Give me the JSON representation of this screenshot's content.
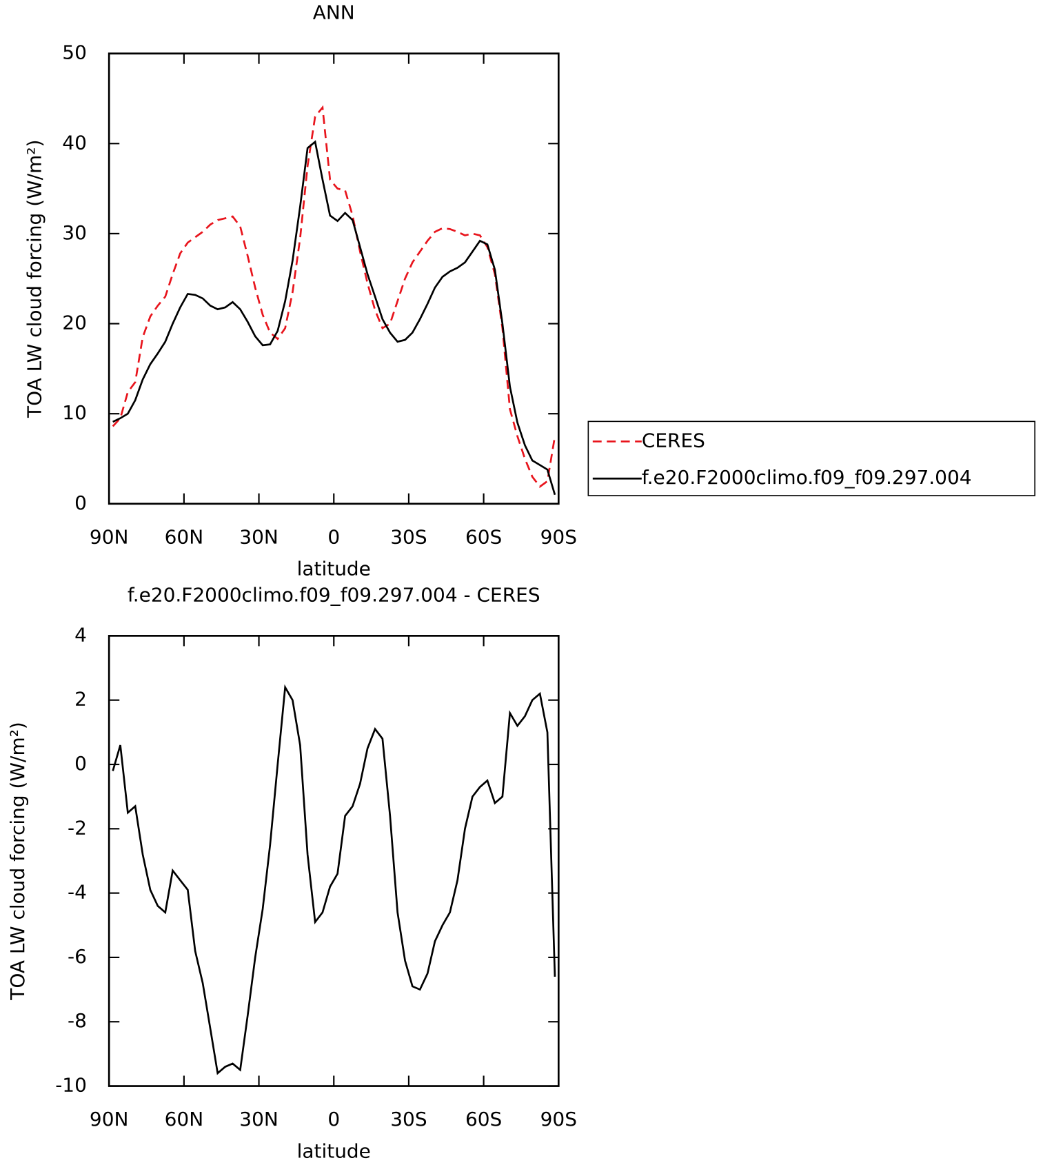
{
  "chart_data": [
    {
      "type": "line",
      "title": "ANN",
      "xlabel": "latitude",
      "ylabel": "TOA LW cloud forcing (W/m²)",
      "x": [
        88.5,
        85.5,
        82.5,
        79.5,
        76.5,
        73.5,
        70.5,
        67.5,
        64.5,
        61.5,
        58.5,
        55.5,
        52.5,
        49.5,
        46.5,
        43.5,
        40.5,
        37.5,
        34.5,
        31.5,
        28.5,
        25.5,
        22.5,
        19.5,
        16.5,
        13.5,
        10.5,
        7.5,
        4.5,
        1.5,
        -1.5,
        -4.5,
        -7.5,
        -10.5,
        -13.5,
        -16.5,
        -19.5,
        -22.5,
        -25.5,
        -28.5,
        -31.5,
        -34.5,
        -37.5,
        -40.5,
        -43.5,
        -46.5,
        -49.5,
        -52.5,
        -55.5,
        -58.5,
        -61.5,
        -64.5,
        -67.5,
        -70.5,
        -73.5,
        -76.5,
        -79.5,
        -82.5,
        -85.5,
        -88.5
      ],
      "series": [
        {
          "name": "CERES",
          "color": "#e8141c",
          "line_style": "dashed",
          "values": [
            8.6,
            9.5,
            12.4,
            13.5,
            18.5,
            20.8,
            22.0,
            23.0,
            25.5,
            27.8,
            29.0,
            29.6,
            30.2,
            31.0,
            31.5,
            31.7,
            31.9,
            30.8,
            27.5,
            24.0,
            21.0,
            19.0,
            18.3,
            19.5,
            23.5,
            29.5,
            37.5,
            43.0,
            44.0,
            36.0,
            35.0,
            34.8,
            32.0,
            28.0,
            24.5,
            21.5,
            19.5,
            20.0,
            22.5,
            25.0,
            26.8,
            28.0,
            29.2,
            30.2,
            30.6,
            30.5,
            30.2,
            29.8,
            30.0,
            29.8,
            28.5,
            25.5,
            19.5,
            10.5,
            7.5,
            5.0,
            3.0,
            1.9,
            2.5,
            7.5
          ]
        },
        {
          "name": "f.e20.F2000climo.f09_f09.297.004",
          "color": "#000000",
          "line_style": "solid",
          "values": [
            9.1,
            9.5,
            10.0,
            11.5,
            13.8,
            15.5,
            16.7,
            18.0,
            20.0,
            21.8,
            23.3,
            23.2,
            22.8,
            22.0,
            21.6,
            21.8,
            22.4,
            21.6,
            20.2,
            18.6,
            17.6,
            17.7,
            19.2,
            22.5,
            27.0,
            33.0,
            39.5,
            40.2,
            36.0,
            32.0,
            31.4,
            32.3,
            31.5,
            28.5,
            25.5,
            23.0,
            20.5,
            19.0,
            18.0,
            18.2,
            19.0,
            20.5,
            22.2,
            24.0,
            25.2,
            25.8,
            26.2,
            26.8,
            28.0,
            29.2,
            28.8,
            26.0,
            20.0,
            13.0,
            9.0,
            6.5,
            4.8,
            4.3,
            3.8,
            1.0
          ]
        }
      ],
      "xlim": [
        90,
        -90
      ],
      "xticks": [
        {
          "value": 90,
          "label": "90N"
        },
        {
          "value": 60,
          "label": "60N"
        },
        {
          "value": 30,
          "label": "30N"
        },
        0,
        {
          "value": -30,
          "label": "30S"
        },
        {
          "value": -60,
          "label": "60S"
        },
        {
          "value": -90,
          "label": "90S"
        }
      ],
      "ylim": [
        0,
        50
      ],
      "yticks": [
        0,
        10,
        20,
        30,
        40,
        50
      ],
      "legend": "right"
    },
    {
      "type": "line",
      "title": "f.e20.F2000climo.f09_f09.297.004 - CERES",
      "xlabel": "latitude",
      "ylabel": "TOA LW cloud forcing (W/m²)",
      "x": [
        88.5,
        85.5,
        82.5,
        79.5,
        76.5,
        73.5,
        70.5,
        67.5,
        64.5,
        61.5,
        58.5,
        55.5,
        52.5,
        49.5,
        46.5,
        43.5,
        40.5,
        37.5,
        34.5,
        31.5,
        28.5,
        25.5,
        22.5,
        19.5,
        16.5,
        13.5,
        10.5,
        7.5,
        4.5,
        1.5,
        -1.5,
        -4.5,
        -7.5,
        -10.5,
        -13.5,
        -16.5,
        -19.5,
        -22.5,
        -25.5,
        -28.5,
        -31.5,
        -34.5,
        -37.5,
        -40.5,
        -43.5,
        -46.5,
        -49.5,
        -52.5,
        -55.5,
        -58.5,
        -61.5,
        -64.5,
        -67.5,
        -70.5,
        -73.5,
        -76.5,
        -79.5,
        -82.5,
        -85.5,
        -88.5
      ],
      "series": [
        {
          "color": "#000000",
          "line_style": "solid",
          "values": [
            -0.2,
            0.6,
            -1.5,
            -1.3,
            -2.8,
            -3.9,
            -4.4,
            -4.6,
            -3.3,
            -3.6,
            -3.9,
            -5.8,
            -6.8,
            -8.2,
            -9.6,
            -9.4,
            -9.3,
            -9.5,
            -7.8,
            -6.0,
            -4.5,
            -2.5,
            0.0,
            2.4,
            2.0,
            0.6,
            -2.8,
            -4.9,
            -4.6,
            -3.8,
            -3.4,
            -1.6,
            -1.3,
            -0.6,
            0.5,
            1.1,
            0.8,
            -1.6,
            -4.6,
            -6.1,
            -6.9,
            -7.0,
            -6.5,
            -5.5,
            -5.0,
            -4.6,
            -3.6,
            -2.0,
            -1.0,
            -0.7,
            -0.5,
            -1.2,
            -1.0,
            1.6,
            1.2,
            1.5,
            2.0,
            2.2,
            1.0,
            -6.6
          ]
        }
      ],
      "xlim": [
        90,
        -90
      ],
      "xticks": [
        {
          "value": 90,
          "label": "90N"
        },
        {
          "value": 60,
          "label": "60N"
        },
        {
          "value": 30,
          "label": "30N"
        },
        0,
        {
          "value": -30,
          "label": "30S"
        },
        {
          "value": -60,
          "label": "60S"
        },
        {
          "value": -90,
          "label": "90S"
        }
      ],
      "ylim": [
        -10,
        4
      ],
      "yticks": [
        -10,
        -8,
        -6,
        -4,
        -2,
        0,
        2,
        4
      ]
    }
  ]
}
